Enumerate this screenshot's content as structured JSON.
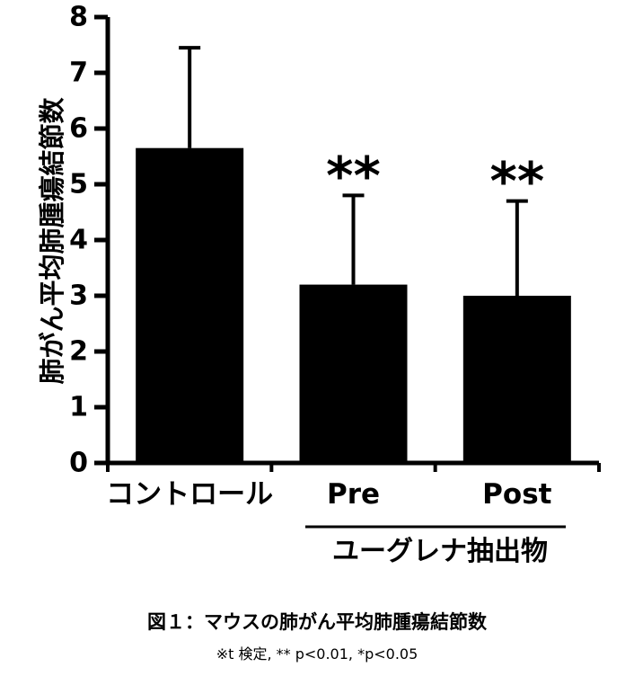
{
  "chart_data": {
    "type": "bar",
    "categories": [
      "コントロール",
      "Pre",
      "Post"
    ],
    "values": [
      5.65,
      3.2,
      3.0
    ],
    "error_upper": [
      7.45,
      4.8,
      4.7
    ],
    "significance": [
      "",
      "**",
      "**"
    ],
    "ylabel": "肺がん平均肺腫瘍結節数",
    "ylim": [
      0,
      8
    ],
    "yticks": [
      0,
      1,
      2,
      3,
      4,
      5,
      6,
      7,
      8
    ],
    "group_label": "ユーグレナ抽出物",
    "bar_color": "#000000",
    "grid": false,
    "legend": "none"
  },
  "caption": {
    "title": "図１：マウスの肺がん平均肺腫瘍結節数",
    "note": "※t 検定, ** p<0.01, *p<0.05"
  }
}
